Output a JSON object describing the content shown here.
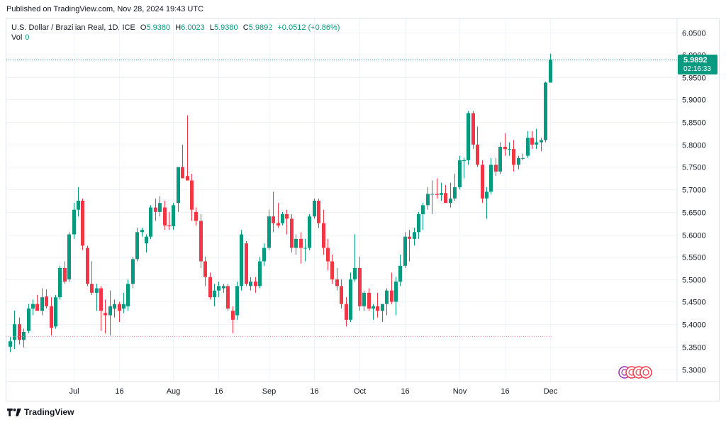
{
  "header": {
    "published": "Published on TradingView.com, Nov 28, 2024 19:43 UTC"
  },
  "legend": {
    "symbol": "U.S. Dollar / Brazilian Real, 1D, ICE",
    "open_label": "O",
    "open": "5.9380",
    "high_label": "H",
    "high": "6.0023",
    "low_label": "L",
    "low": "5.9380",
    "close_label": "C",
    "close": "5.9892",
    "change": "+0.0512 (+0.86%)",
    "vol_label": "Vol",
    "vol": "0"
  },
  "price_tag": {
    "price": "5.9892",
    "countdown": "02:16:33"
  },
  "footer": {
    "brand": "TradingView"
  },
  "colors": {
    "up": "#089981",
    "down": "#f23645",
    "grid": "#f0f3fa",
    "axis_text": "#131722",
    "tag_bg": "#089981"
  },
  "chart_data": {
    "type": "candlestick",
    "title": "U.S. Dollar / Brazilian Real, 1D, ICE",
    "ylim": [
      5.27,
      6.07
    ],
    "y_ticks": [
      "6.0500",
      "6.0000",
      "5.9500",
      "5.9000",
      "5.8500",
      "5.8000",
      "5.7500",
      "5.7000",
      "5.6500",
      "5.6000",
      "5.5500",
      "5.5000",
      "5.4500",
      "5.4000",
      "5.3500",
      "5.3000"
    ],
    "x_ticks": [
      {
        "label": "Jul",
        "index": 14
      },
      {
        "label": "16",
        "index": 24
      },
      {
        "label": "Aug",
        "index": 36
      },
      {
        "label": "16",
        "index": 46
      },
      {
        "label": "Sep",
        "index": 57
      },
      {
        "label": "16",
        "index": 67
      },
      {
        "label": "Oct",
        "index": 77
      },
      {
        "label": "16",
        "index": 87
      },
      {
        "label": "Nov",
        "index": 99
      },
      {
        "label": "16",
        "index": 109
      },
      {
        "label": "Dec",
        "index": 119
      }
    ],
    "last_price": 5.9892,
    "low_line": 5.373,
    "ohlc": [
      [
        5.35,
        5.372,
        5.338,
        5.362
      ],
      [
        5.365,
        5.43,
        5.345,
        5.4
      ],
      [
        5.4,
        5.415,
        5.355,
        5.365
      ],
      [
        5.365,
        5.39,
        5.348,
        5.383
      ],
      [
        5.385,
        5.445,
        5.38,
        5.435
      ],
      [
        5.435,
        5.455,
        5.42,
        5.445
      ],
      [
        5.445,
        5.465,
        5.43,
        5.43
      ],
      [
        5.43,
        5.48,
        5.42,
        5.46
      ],
      [
        5.462,
        5.478,
        5.435,
        5.44
      ],
      [
        5.44,
        5.46,
        5.375,
        5.392
      ],
      [
        5.395,
        5.465,
        5.39,
        5.46
      ],
      [
        5.46,
        5.53,
        5.455,
        5.525
      ],
      [
        5.525,
        5.54,
        5.49,
        5.495
      ],
      [
        5.5,
        5.605,
        5.495,
        5.6
      ],
      [
        5.6,
        5.67,
        5.59,
        5.655
      ],
      [
        5.655,
        5.705,
        5.64,
        5.675
      ],
      [
        5.675,
        5.68,
        5.565,
        5.575
      ],
      [
        5.57,
        5.575,
        5.485,
        5.49
      ],
      [
        5.49,
        5.54,
        5.465,
        5.47
      ],
      [
        5.47,
        5.49,
        5.43,
        5.48
      ],
      [
        5.48,
        5.485,
        5.385,
        5.43
      ],
      [
        5.425,
        5.455,
        5.38,
        5.42
      ],
      [
        5.42,
        5.475,
        5.375,
        5.44
      ],
      [
        5.435,
        5.455,
        5.415,
        5.445
      ],
      [
        5.445,
        5.45,
        5.405,
        5.43
      ],
      [
        5.435,
        5.47,
        5.425,
        5.445
      ],
      [
        5.44,
        5.5,
        5.43,
        5.49
      ],
      [
        5.49,
        5.55,
        5.48,
        5.545
      ],
      [
        5.545,
        5.615,
        5.54,
        5.605
      ],
      [
        5.605,
        5.615,
        5.595,
        5.61
      ],
      [
        5.58,
        5.6,
        5.56,
        5.595
      ],
      [
        5.595,
        5.665,
        5.59,
        5.66
      ],
      [
        5.66,
        5.68,
        5.63,
        5.65
      ],
      [
        5.65,
        5.685,
        5.64,
        5.67
      ],
      [
        5.66,
        5.675,
        5.61,
        5.62
      ],
      [
        5.62,
        5.65,
        5.61,
        5.618
      ],
      [
        5.618,
        5.67,
        5.61,
        5.665
      ],
      [
        5.67,
        5.75,
        5.65,
        5.75
      ],
      [
        5.75,
        5.8,
        5.725,
        5.725
      ],
      [
        5.73,
        5.865,
        5.72,
        5.72
      ],
      [
        5.72,
        5.735,
        5.63,
        5.655
      ],
      [
        5.65,
        5.66,
        5.62,
        5.63
      ],
      [
        5.63,
        5.645,
        5.525,
        5.54
      ],
      [
        5.54,
        5.55,
        5.485,
        5.505
      ],
      [
        5.505,
        5.515,
        5.455,
        5.46
      ],
      [
        5.46,
        5.49,
        5.44,
        5.475
      ],
      [
        5.475,
        5.495,
        5.46,
        5.485
      ],
      [
        5.48,
        5.49,
        5.47,
        5.485
      ],
      [
        5.485,
        5.49,
        5.43,
        5.435
      ],
      [
        5.43,
        5.44,
        5.38,
        5.41
      ],
      [
        5.42,
        5.495,
        5.41,
        5.485
      ],
      [
        5.485,
        5.61,
        5.475,
        5.6
      ],
      [
        5.58,
        5.585,
        5.485,
        5.49
      ],
      [
        5.485,
        5.505,
        5.475,
        5.495
      ],
      [
        5.495,
        5.505,
        5.47,
        5.485
      ],
      [
        5.485,
        5.55,
        5.48,
        5.54
      ],
      [
        5.54,
        5.58,
        5.53,
        5.57
      ],
      [
        5.57,
        5.655,
        5.565,
        5.64
      ],
      [
        5.64,
        5.695,
        5.605,
        5.625
      ],
      [
        5.625,
        5.67,
        5.615,
        5.62
      ],
      [
        5.625,
        5.65,
        5.62,
        5.645
      ],
      [
        5.645,
        5.655,
        5.6,
        5.635
      ],
      [
        5.635,
        5.645,
        5.56,
        5.57
      ],
      [
        5.57,
        5.6,
        5.555,
        5.59
      ],
      [
        5.59,
        5.605,
        5.535,
        5.57
      ],
      [
        5.57,
        5.59,
        5.54,
        5.57
      ],
      [
        5.57,
        5.645,
        5.565,
        5.64
      ],
      [
        5.64,
        5.68,
        5.635,
        5.675
      ],
      [
        5.675,
        5.68,
        5.615,
        5.625
      ],
      [
        5.625,
        5.655,
        5.555,
        5.57
      ],
      [
        5.57,
        5.59,
        5.52,
        5.54
      ],
      [
        5.54,
        5.555,
        5.49,
        5.5
      ],
      [
        5.5,
        5.525,
        5.475,
        5.485
      ],
      [
        5.485,
        5.5,
        5.435,
        5.445
      ],
      [
        5.445,
        5.46,
        5.395,
        5.41
      ],
      [
        5.41,
        5.515,
        5.405,
        5.5
      ],
      [
        5.5,
        5.6,
        5.495,
        5.525
      ],
      [
        5.525,
        5.55,
        5.43,
        5.44
      ],
      [
        5.44,
        5.475,
        5.43,
        5.47
      ],
      [
        5.47,
        5.48,
        5.43,
        5.435
      ],
      [
        5.435,
        5.445,
        5.41,
        5.44
      ],
      [
        5.44,
        5.47,
        5.415,
        5.43
      ],
      [
        5.43,
        5.445,
        5.405,
        5.445
      ],
      [
        5.445,
        5.48,
        5.42,
        5.475
      ],
      [
        5.475,
        5.515,
        5.445,
        5.45
      ],
      [
        5.45,
        5.505,
        5.42,
        5.495
      ],
      [
        5.495,
        5.555,
        5.485,
        5.53
      ],
      [
        5.53,
        5.605,
        5.525,
        5.595
      ],
      [
        5.595,
        5.61,
        5.54,
        5.59
      ],
      [
        5.59,
        5.615,
        5.575,
        5.605
      ],
      [
        5.605,
        5.65,
        5.59,
        5.645
      ],
      [
        5.645,
        5.67,
        5.61,
        5.665
      ],
      [
        5.665,
        5.705,
        5.655,
        5.69
      ],
      [
        5.69,
        5.72,
        5.645,
        5.69
      ],
      [
        5.69,
        5.725,
        5.68,
        5.688
      ],
      [
        5.688,
        5.715,
        5.675,
        5.692
      ],
      [
        5.692,
        5.71,
        5.67,
        5.67
      ],
      [
        5.67,
        5.715,
        5.66,
        5.68
      ],
      [
        5.68,
        5.735,
        5.675,
        5.705
      ],
      [
        5.705,
        5.775,
        5.7,
        5.765
      ],
      [
        5.765,
        5.77,
        5.725,
        5.765
      ],
      [
        5.765,
        5.875,
        5.755,
        5.87
      ],
      [
        5.87,
        5.875,
        5.79,
        5.8
      ],
      [
        5.8,
        5.84,
        5.75,
        5.755
      ],
      [
        5.755,
        5.765,
        5.67,
        5.68
      ],
      [
        5.68,
        5.705,
        5.635,
        5.695
      ],
      [
        5.695,
        5.77,
        5.69,
        5.755
      ],
      [
        5.755,
        5.77,
        5.73,
        5.74
      ],
      [
        5.74,
        5.805,
        5.735,
        5.795
      ],
      [
        5.795,
        5.825,
        5.775,
        5.79
      ],
      [
        5.79,
        5.805,
        5.775,
        5.79
      ],
      [
        5.79,
        5.81,
        5.74,
        5.755
      ],
      [
        5.755,
        5.775,
        5.745,
        5.77
      ],
      [
        5.77,
        5.78,
        5.765,
        5.77
      ],
      [
        5.775,
        5.83,
        5.77,
        5.815
      ],
      [
        5.815,
        5.83,
        5.79,
        5.8
      ],
      [
        5.8,
        5.835,
        5.79,
        5.805
      ],
      [
        5.805,
        5.815,
        5.785,
        5.81
      ],
      [
        5.81,
        5.94,
        5.805,
        5.938
      ],
      [
        5.938,
        6.0023,
        5.938,
        5.9892
      ]
    ]
  }
}
